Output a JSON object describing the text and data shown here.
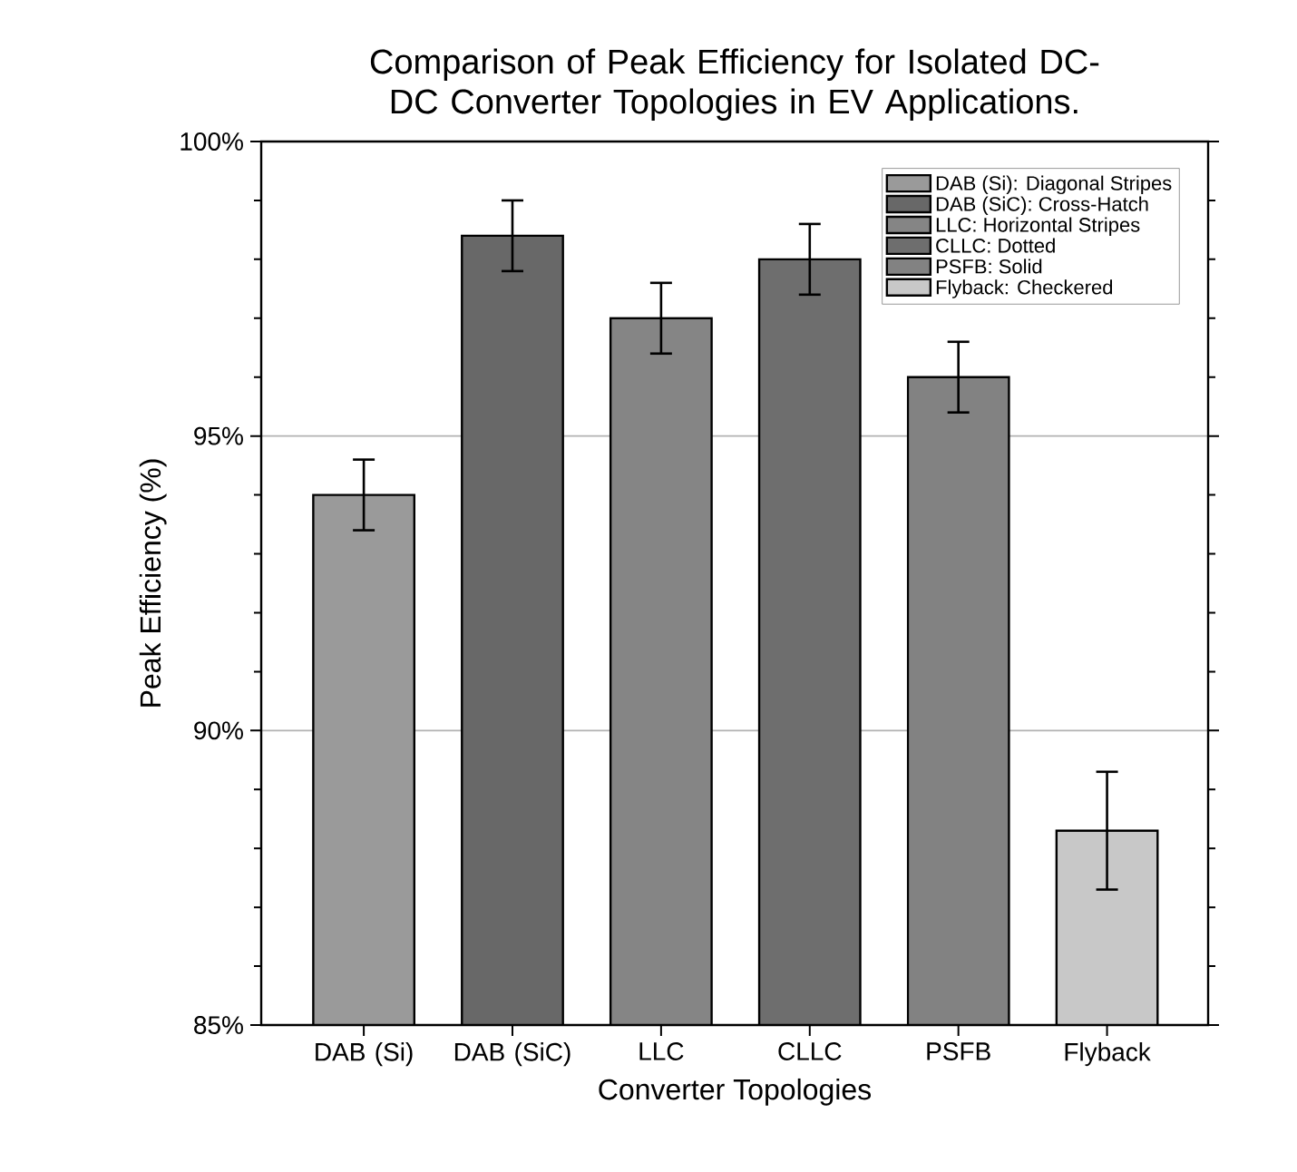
{
  "chart_data": {
    "type": "bar",
    "title": "Comparison of Peak Efficiency for Isolated DC-DC Converter Topologies in EV Applications.",
    "xlabel": "Converter Topologies",
    "ylabel": "Peak Efficiency (%)",
    "categories": [
      "DAB (Si)",
      "DAB (SiC)",
      "LLC",
      "CLLC",
      "PSFB",
      "Flyback"
    ],
    "series": [
      {
        "name": "DAB (Si): Diagonal Stripes",
        "color": "#9a9a9a",
        "values": [
          94.0,
          null,
          null,
          null,
          null,
          null
        ],
        "errors": [
          0.6,
          null,
          null,
          null,
          null,
          null
        ]
      },
      {
        "name": "DAB (SiC): Cross-Hatch",
        "color": "#686868",
        "values": [
          null,
          98.4,
          null,
          null,
          null,
          null
        ],
        "errors": [
          null,
          0.6,
          null,
          null,
          null,
          null
        ]
      },
      {
        "name": "LLC: Horizontal Stripes",
        "color": "#858585",
        "values": [
          null,
          null,
          97.0,
          null,
          null,
          null
        ],
        "errors": [
          null,
          null,
          0.6,
          null,
          null,
          null
        ]
      },
      {
        "name": "CLLC: Dotted",
        "color": "#6e6e6e",
        "values": [
          null,
          null,
          null,
          98.0,
          null,
          null
        ],
        "errors": [
          null,
          null,
          null,
          0.6,
          null,
          null
        ]
      },
      {
        "name": "PSFB: Solid",
        "color": "#828282",
        "values": [
          null,
          null,
          null,
          null,
          96.0,
          null
        ],
        "errors": [
          null,
          null,
          null,
          null,
          0.6,
          null
        ]
      },
      {
        "name": "Flyback: Checkered",
        "color": "#c8c8c8",
        "values": [
          null,
          null,
          null,
          null,
          null,
          88.3
        ],
        "errors": [
          null,
          null,
          null,
          null,
          null,
          1.0
        ]
      }
    ],
    "ylim": [
      85,
      100
    ],
    "yticks": [
      {
        "value": 85,
        "label": "85%"
      },
      {
        "value": 86,
        "label": null
      },
      {
        "value": 87,
        "label": null
      },
      {
        "value": 88,
        "label": null
      },
      {
        "value": 89,
        "label": null
      },
      {
        "value": 90,
        "label": "90%"
      },
      {
        "value": 91,
        "label": null
      },
      {
        "value": 92,
        "label": null
      },
      {
        "value": 93,
        "label": null
      },
      {
        "value": 94,
        "label": null
      },
      {
        "value": 95,
        "label": "95%"
      },
      {
        "value": 96,
        "label": null
      },
      {
        "value": 97,
        "label": null
      },
      {
        "value": 98,
        "label": null
      },
      {
        "value": 99,
        "label": null
      },
      {
        "value": 100,
        "label": "100%"
      }
    ],
    "grid": "y",
    "legend": "top right"
  }
}
